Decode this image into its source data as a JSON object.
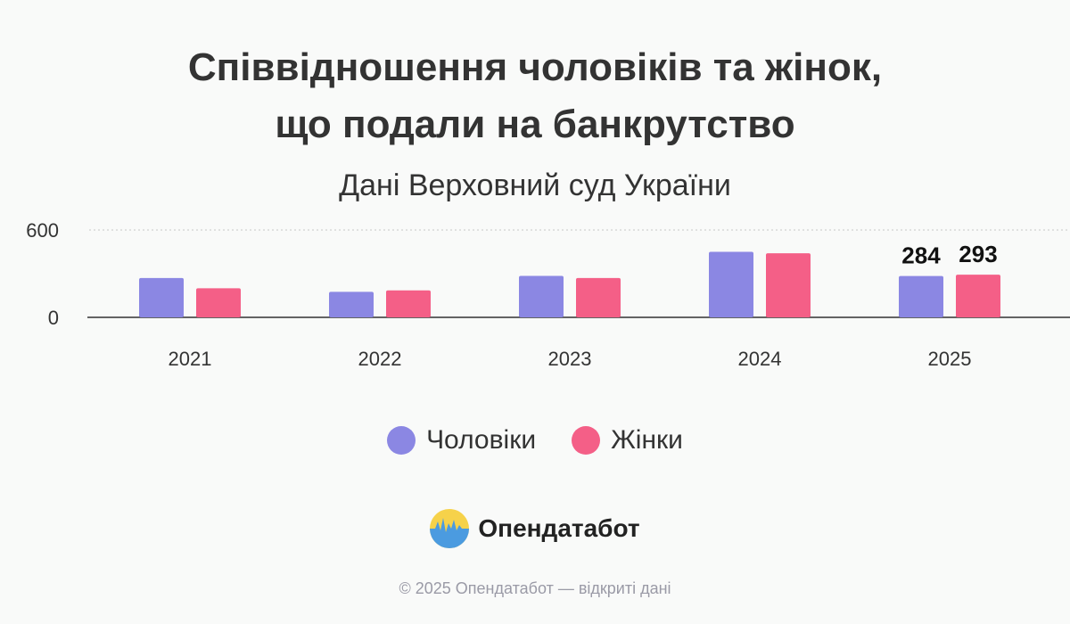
{
  "title_line1": "Співвідношення чоловіків та жінок,",
  "title_line2": "що подали на банкрутство",
  "subtitle": "Дані Верховний суд України",
  "chart_data": {
    "type": "bar",
    "categories": [
      "2021",
      "2022",
      "2023",
      "2024",
      "2025"
    ],
    "series": [
      {
        "name": "Чоловіки",
        "values": [
          270,
          175,
          285,
          450,
          284
        ],
        "color": "#8b87e3"
      },
      {
        "name": "Жінки",
        "values": [
          200,
          185,
          270,
          440,
          293
        ],
        "color": "#f45f87"
      }
    ],
    "data_labels": {
      "2025": [
        "284",
        "293"
      ]
    },
    "y_ticks": [
      "0",
      "600"
    ],
    "ylim": [
      0,
      600
    ],
    "grid": "dotted line at 600",
    "legend_position": "bottom-center"
  },
  "brand": {
    "name": "Опендатабот"
  },
  "footer": "© 2025 Опендатабот — відкриті дані"
}
